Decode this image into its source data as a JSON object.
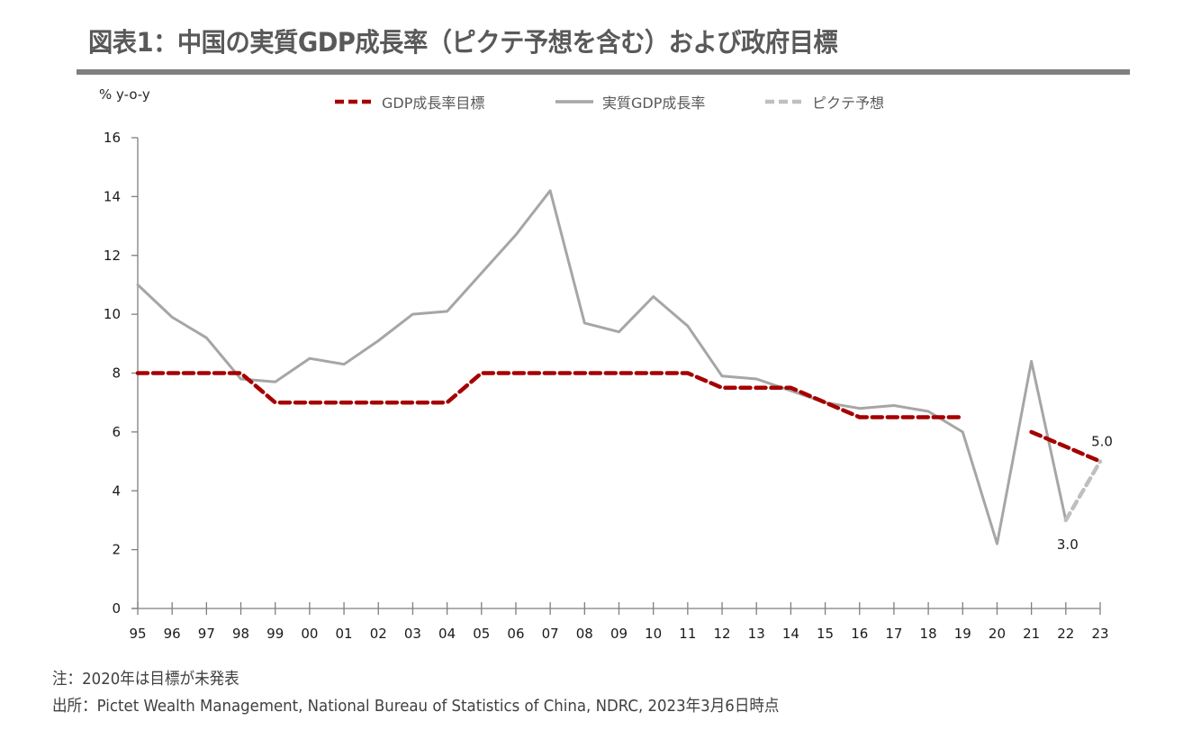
{
  "header": {
    "title": "図表1：中国の実質GDP成長率（ピクテ予想を含む）および政府目標"
  },
  "footer": {
    "note": "注：2020年は目標が未発表",
    "source": "出所：Pictet Wealth Management, National Bureau of Statistics of China, NDRC,  2023年3月6日時点"
  },
  "colors": {
    "target": "#a50000",
    "real": "#a6a6a6",
    "forecast": "#bfbfbf",
    "axis": "#7f7f7f",
    "rule": "#7f7f7f"
  },
  "chart_data": {
    "type": "line",
    "title": "図表1：中国の実質GDP成長率（ピクテ予想を含む）および政府目標",
    "xlabel": "",
    "ylabel": "% y-o-y",
    "ylim": [
      0,
      16
    ],
    "yticks": [
      0,
      2,
      4,
      6,
      8,
      10,
      12,
      14,
      16
    ],
    "grid": false,
    "legend_position": "top",
    "x": [
      "95",
      "96",
      "97",
      "98",
      "99",
      "00",
      "01",
      "02",
      "03",
      "04",
      "05",
      "06",
      "07",
      "08",
      "09",
      "10",
      "11",
      "12",
      "13",
      "14",
      "15",
      "16",
      "17",
      "18",
      "19",
      "20",
      "21",
      "22",
      "23"
    ],
    "series": [
      {
        "name": "GDP成長率目標",
        "style": "dashed",
        "color": "#a50000",
        "values": [
          8,
          8,
          8,
          8,
          7,
          7,
          7,
          7,
          7,
          7,
          8,
          8,
          8,
          8,
          8,
          8,
          8,
          7.5,
          7.5,
          7.5,
          7.0,
          6.5,
          6.5,
          6.5,
          6.5,
          null,
          6.0,
          5.5,
          5.0
        ]
      },
      {
        "name": "実質GDP成長率",
        "style": "solid",
        "color": "#a6a6a6",
        "values": [
          11.0,
          9.9,
          9.2,
          7.8,
          7.7,
          8.5,
          8.3,
          9.1,
          10.0,
          10.1,
          11.4,
          12.7,
          14.2,
          9.7,
          9.4,
          10.6,
          9.6,
          7.9,
          7.8,
          7.4,
          7.0,
          6.8,
          6.9,
          6.7,
          6.0,
          2.2,
          8.4,
          3.0,
          null
        ]
      },
      {
        "name": "ピクテ予想",
        "style": "dashed",
        "color": "#bfbfbf",
        "values": [
          null,
          null,
          null,
          null,
          null,
          null,
          null,
          null,
          null,
          null,
          null,
          null,
          null,
          null,
          null,
          null,
          null,
          null,
          null,
          null,
          null,
          null,
          null,
          null,
          null,
          null,
          null,
          3.0,
          5.0
        ]
      }
    ],
    "annotations": [
      {
        "x": "22",
        "y": 3.0,
        "text": "3.0"
      },
      {
        "x": "23",
        "y": 5.0,
        "text": "5.0"
      }
    ]
  }
}
